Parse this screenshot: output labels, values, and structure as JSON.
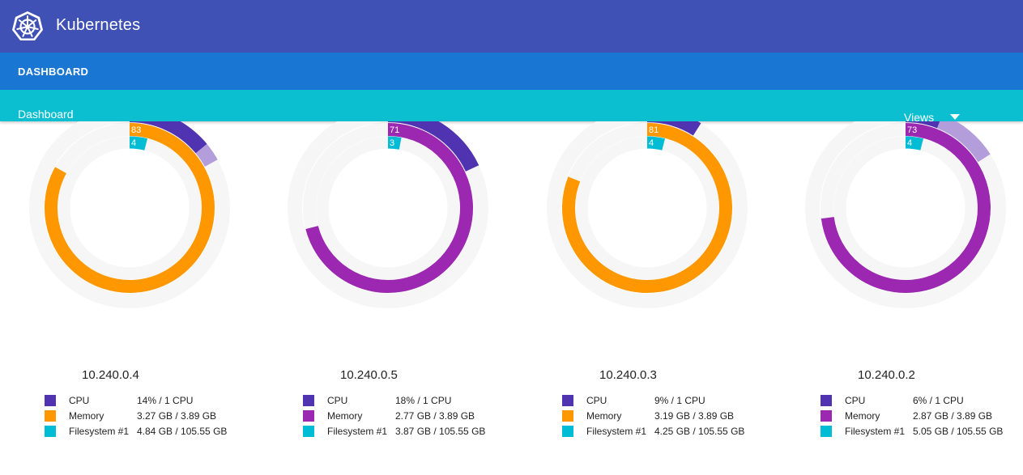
{
  "app": {
    "title": "Kubernetes"
  },
  "nav": {
    "active": "DASHBOARD"
  },
  "toolbar": {
    "breadcrumb": "Dashboard",
    "views_label": "Views"
  },
  "colors": {
    "header": "#3f51b5",
    "nav": "#1976d2",
    "toolbar": "#0bbfd1",
    "cpu": "#5033b0",
    "cpu_light": "#b39ddb",
    "memory_orange": "#ff9800",
    "memory_purple": "#9c27b0",
    "filesystem": "#00bcd4",
    "track": "#f6f6f6"
  },
  "nodes": [
    {
      "ip": "10.240.0.4",
      "cpu_pct": 14,
      "cpu_ext_pct": 3,
      "mem_pct": 83,
      "mem_color": "memory_orange",
      "fs_pct": 4,
      "legend": {
        "cpu_label": "CPU",
        "cpu_value": "14% / 1 CPU",
        "mem_label": "Memory",
        "mem_value": "3.27 GB / 3.89 GB",
        "fs_label": "Filesystem #1",
        "fs_value": "4.84 GB / 105.55 GB"
      }
    },
    {
      "ip": "10.240.0.5",
      "cpu_pct": 18,
      "cpu_ext_pct": 0,
      "mem_pct": 71,
      "mem_color": "memory_purple",
      "fs_pct": 3,
      "legend": {
        "cpu_label": "CPU",
        "cpu_value": "18% / 1 CPU",
        "mem_label": "Memory",
        "mem_value": "2.77 GB / 3.89 GB",
        "fs_label": "Filesystem #1",
        "fs_value": "3.87 GB / 105.55 GB"
      }
    },
    {
      "ip": "10.240.0.3",
      "cpu_pct": 9,
      "cpu_ext_pct": 0,
      "mem_pct": 81,
      "mem_color": "memory_orange",
      "fs_pct": 4,
      "legend": {
        "cpu_label": "CPU",
        "cpu_value": "9% / 1 CPU",
        "mem_label": "Memory",
        "mem_value": "3.19 GB / 3.89 GB",
        "fs_label": "Filesystem #1",
        "fs_value": "4.25 GB / 105.55 GB"
      }
    },
    {
      "ip": "10.240.0.2",
      "cpu_pct": 6,
      "cpu_ext_pct": 10,
      "mem_pct": 73,
      "mem_color": "memory_purple",
      "fs_pct": 4,
      "legend": {
        "cpu_label": "CPU",
        "cpu_value": "6% / 1 CPU",
        "mem_label": "Memory",
        "mem_value": "2.87 GB / 3.89 GB",
        "fs_label": "Filesystem #1",
        "fs_value": "5.05 GB / 105.55 GB"
      }
    }
  ]
}
